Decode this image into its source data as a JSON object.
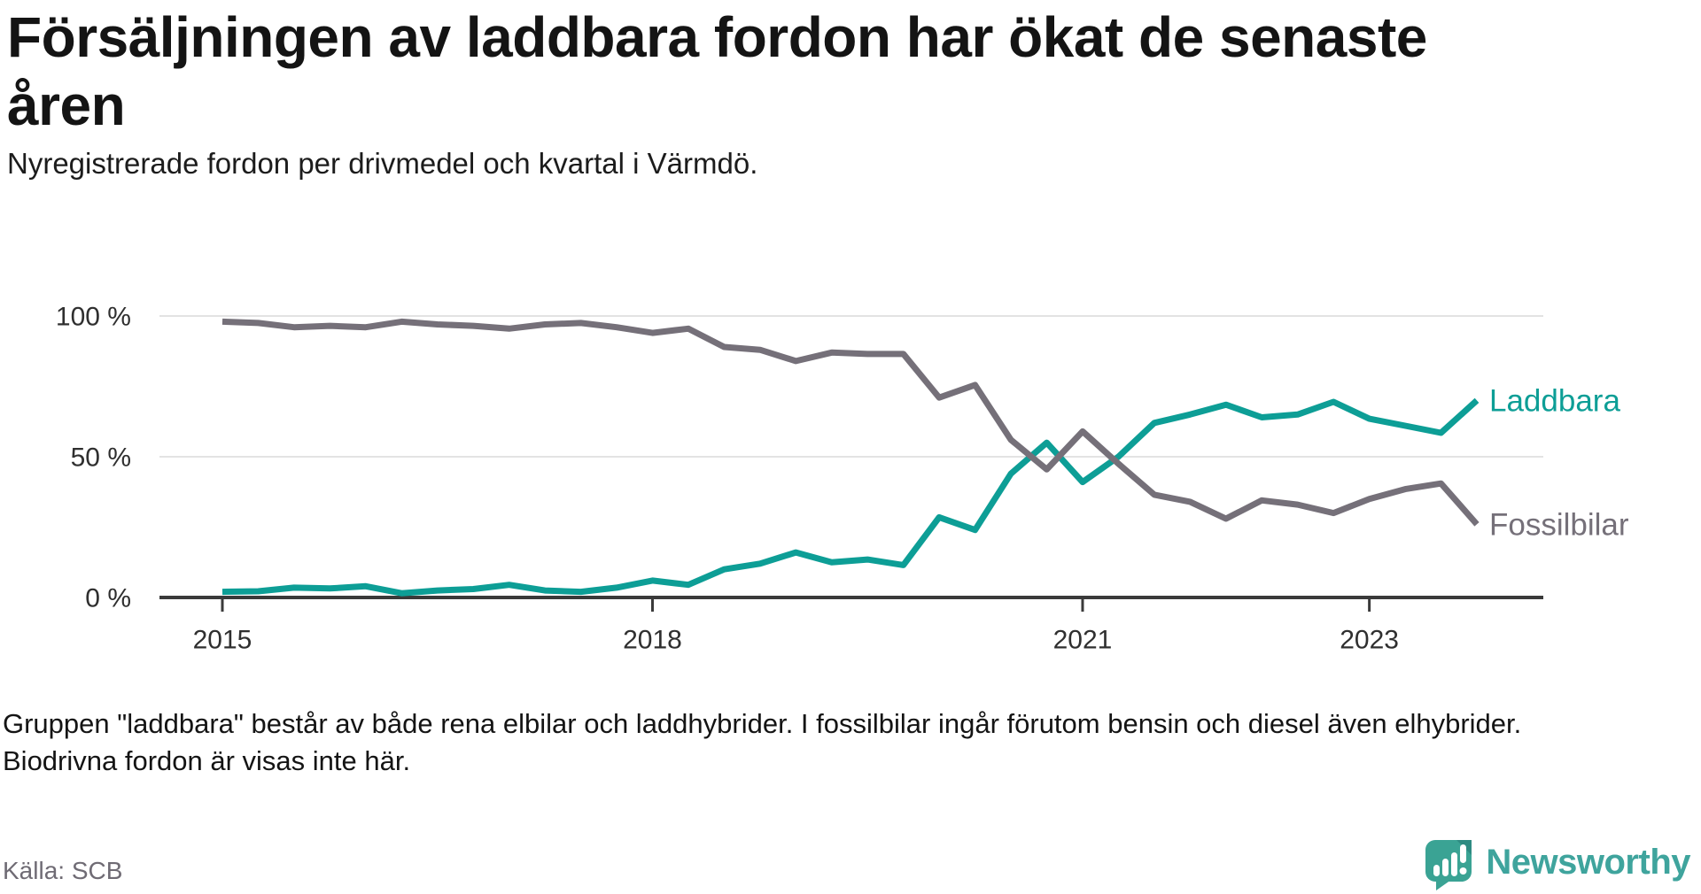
{
  "title": "Försäljningen av laddbara fordon har ökat de senaste åren",
  "subtitle": "Nyregistrerade fordon per drivmedel och kvartal i Värmdö.",
  "footnote": "Gruppen \"laddbara\" består av både rena elbilar och laddhybrider. I fossilbilar ingår förutom bensin och diesel även elhybrider. Biodrivna fordon är visas inte här.",
  "source": "Källa: SCB",
  "branding": {
    "wordmark": "Newsworthy",
    "logo_icon": "speech-bubble-bar-chart-icon",
    "brand_color": "#3aa394"
  },
  "colors": {
    "laddbara_line": "#0d9e96",
    "fossilbilar_line": "#757079",
    "gridline": "#e3e3e3",
    "axis_line": "#3a3a3a",
    "tick_text": "#2f2f2f",
    "title_text": "#141414",
    "source_text": "#6f6b74"
  },
  "chart_data": {
    "type": "line",
    "unit": "%",
    "title": "Försäljningen av laddbara fordon har ökat de senaste åren",
    "xlabel": "",
    "ylabel": "",
    "ylim": [
      0,
      100
    ],
    "grid": "horizontal",
    "legend": "line-end-labels",
    "categories": [
      "2015-Q1",
      "2015-Q2",
      "2015-Q3",
      "2015-Q4",
      "2016-Q1",
      "2016-Q2",
      "2016-Q3",
      "2016-Q4",
      "2017-Q1",
      "2017-Q2",
      "2017-Q3",
      "2017-Q4",
      "2018-Q1",
      "2018-Q2",
      "2018-Q3",
      "2018-Q4",
      "2019-Q1",
      "2019-Q2",
      "2019-Q3",
      "2019-Q4",
      "2020-Q1",
      "2020-Q2",
      "2020-Q3",
      "2020-Q4",
      "2021-Q1",
      "2021-Q2",
      "2021-Q3",
      "2021-Q4",
      "2022-Q1",
      "2022-Q2",
      "2022-Q3",
      "2022-Q4",
      "2023-Q1",
      "2023-Q2",
      "2023-Q3",
      "2023-Q4"
    ],
    "series": [
      {
        "name": "Laddbara",
        "color": "#0d9e96",
        "values": [
          2,
          2.2,
          3.5,
          3.2,
          4,
          1.5,
          2.5,
          3,
          4.5,
          2.5,
          2,
          3.5,
          6,
          4.5,
          10,
          12,
          16,
          12.5,
          13.5,
          11.5,
          28.5,
          24,
          44,
          55,
          41,
          50,
          62,
          65,
          68.5,
          64,
          65,
          69.5,
          63.5,
          61,
          58.5,
          70
        ]
      },
      {
        "name": "Fossilbilar",
        "color": "#757079",
        "values": [
          98,
          97.5,
          96,
          96.5,
          96,
          98,
          97,
          96.5,
          95.5,
          97,
          97.5,
          96,
          94,
          95.5,
          89,
          88,
          84,
          87,
          86.5,
          86.5,
          71,
          75.5,
          56,
          45.5,
          59,
          47.5,
          36.5,
          34,
          28,
          34.5,
          33,
          30,
          35,
          38.5,
          40.5,
          26
        ]
      }
    ],
    "y_ticks": [
      {
        "value": 0,
        "label": "0 %"
      },
      {
        "value": 50,
        "label": "50 %"
      },
      {
        "value": 100,
        "label": "100 %"
      }
    ],
    "x_ticks": [
      {
        "index": 0,
        "label": "2015"
      },
      {
        "index": 12,
        "label": "2018"
      },
      {
        "index": 24,
        "label": "2021"
      },
      {
        "index": 32,
        "label": "2023"
      }
    ]
  }
}
